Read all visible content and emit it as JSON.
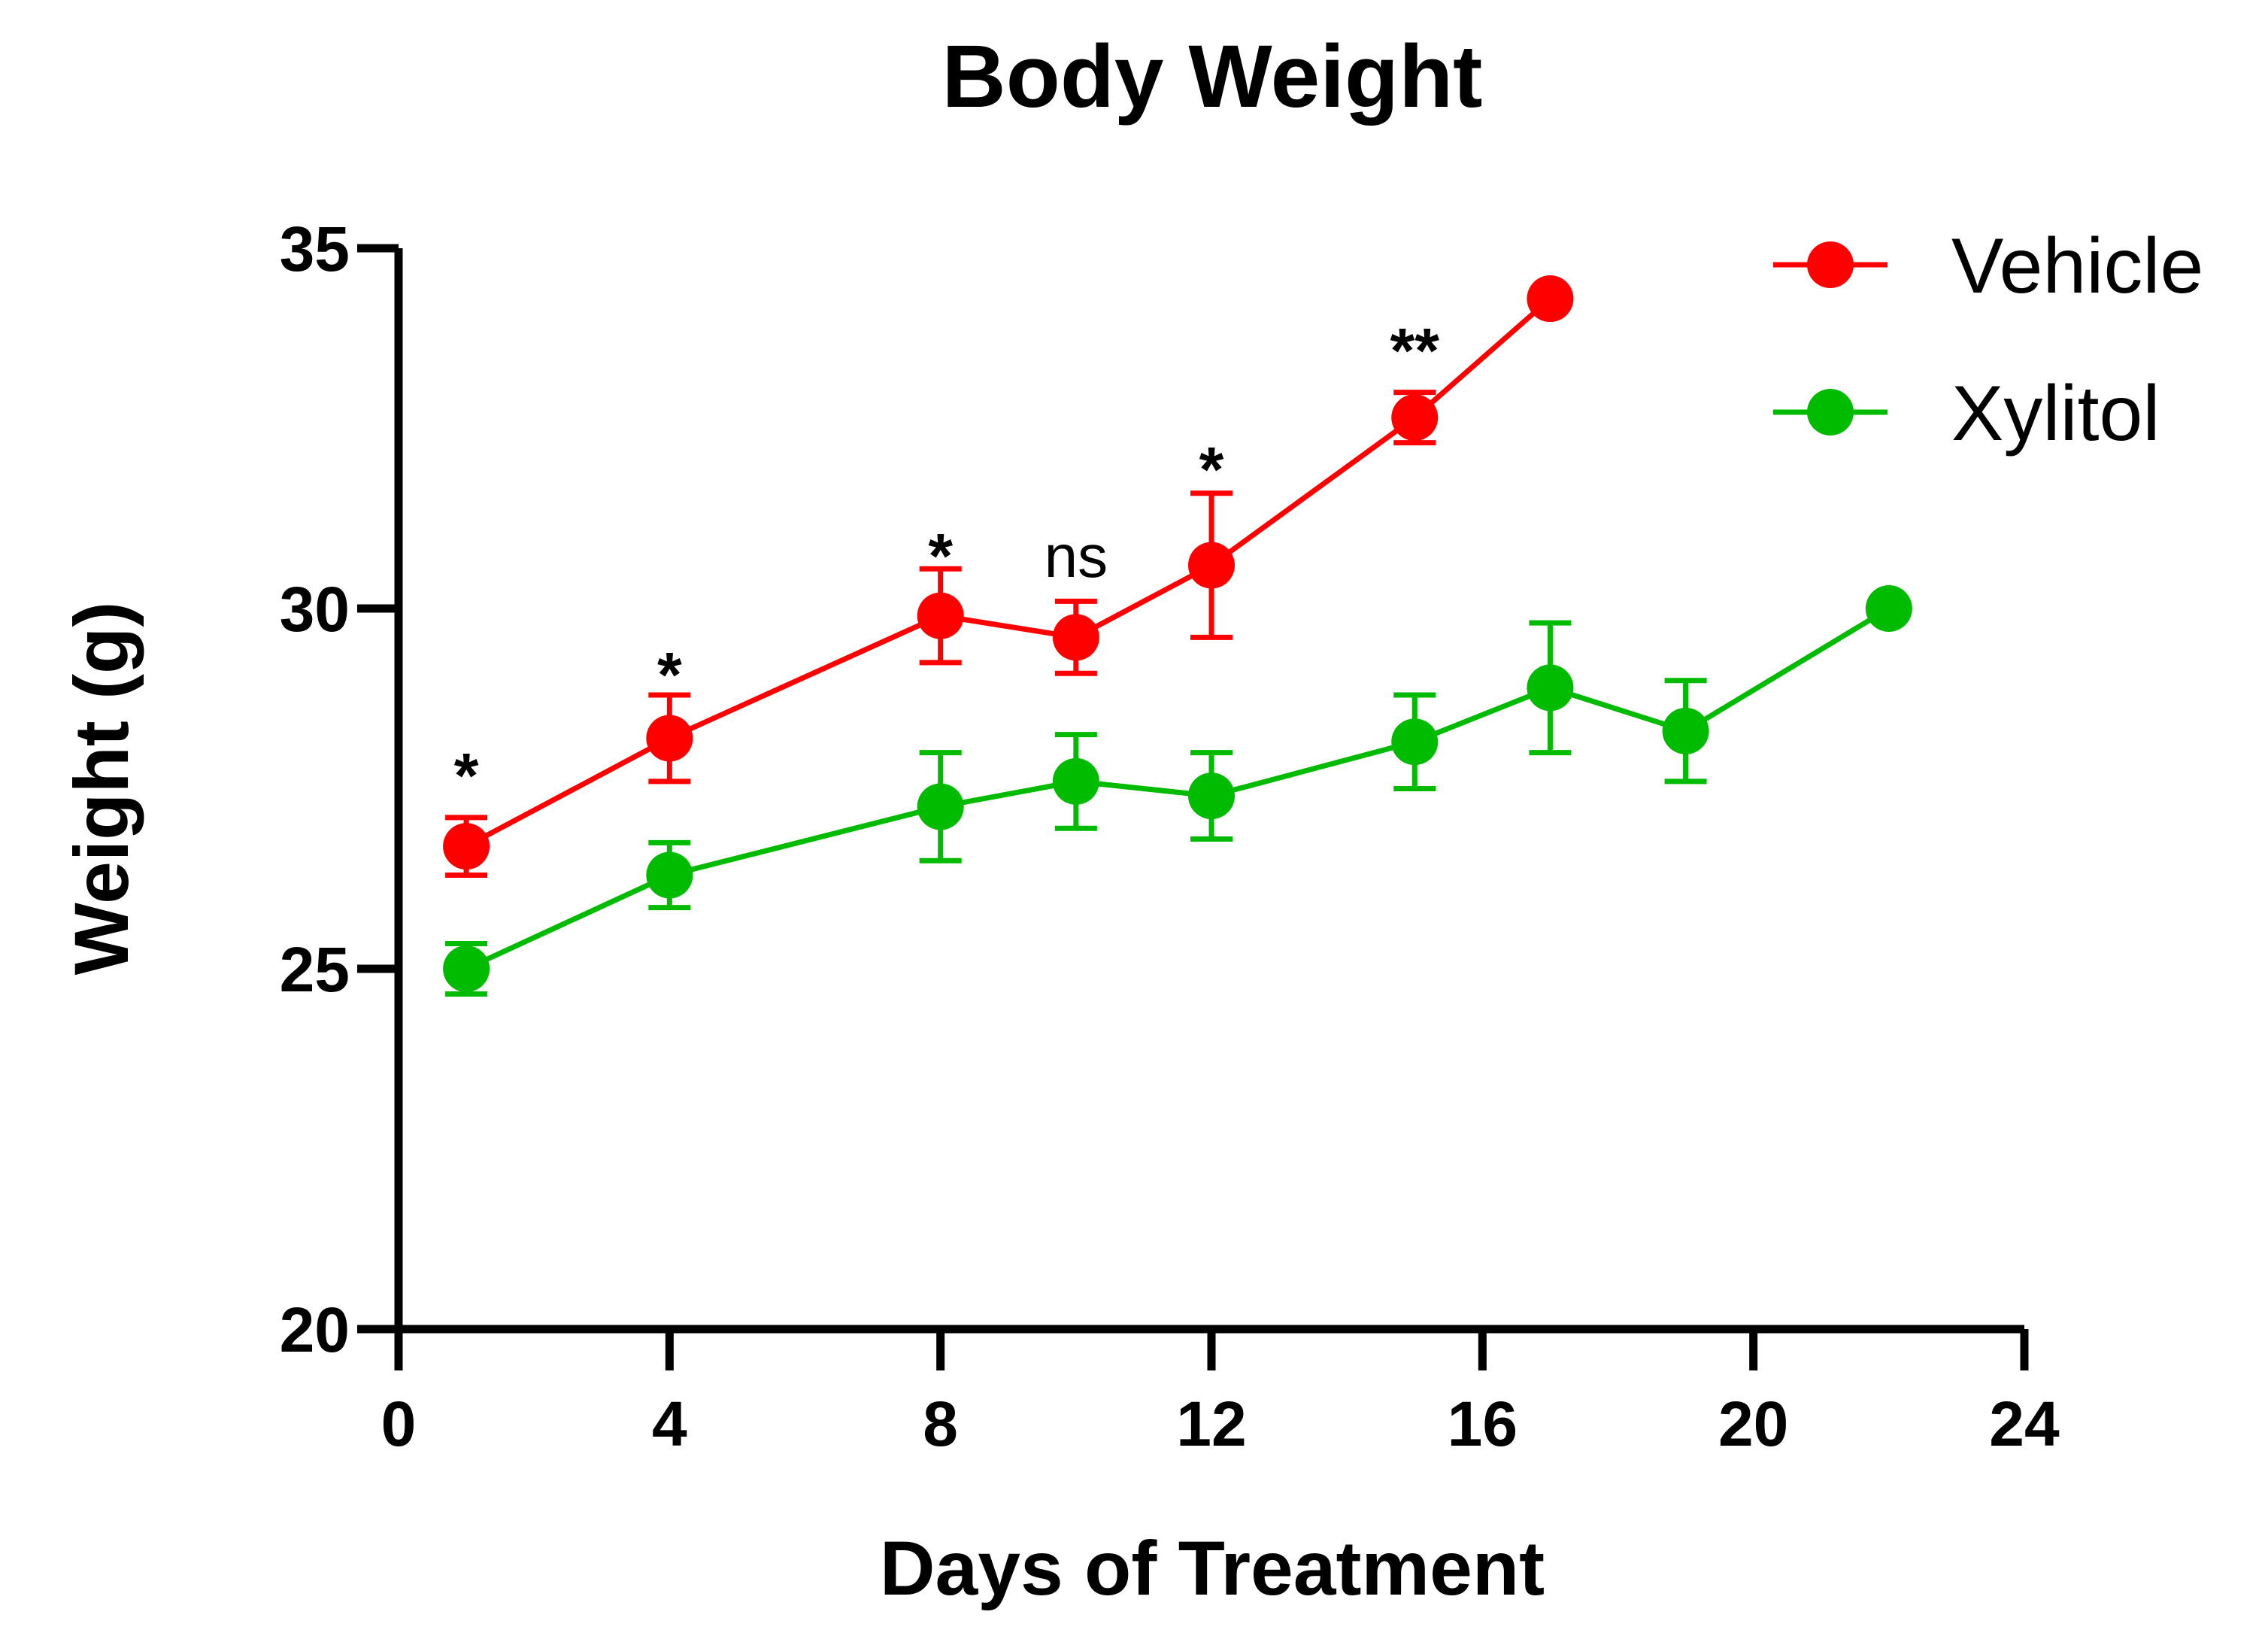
{
  "chart_data": {
    "type": "line",
    "title": "Body Weight",
    "xlabel": "Days of Treatment",
    "ylabel": "Weight (g)",
    "xlim": [
      0,
      24
    ],
    "ylim": [
      20,
      35
    ],
    "xticks": [
      0,
      4,
      8,
      12,
      16,
      20,
      24
    ],
    "yticks": [
      20,
      25,
      30,
      35
    ],
    "grid": false,
    "legend_position": "top-right",
    "series": [
      {
        "name": "Vehicle",
        "color": "#ff0000",
        "x": [
          1,
          4,
          8,
          10,
          12,
          15,
          17
        ],
        "y": [
          26.7,
          28.2,
          29.9,
          29.6,
          30.6,
          32.65,
          34.3
        ],
        "err": [
          0.4,
          0.6,
          0.65,
          0.5,
          1.0,
          0.35,
          0
        ]
      },
      {
        "name": "Xylitol",
        "color": "#00bb00",
        "x": [
          1,
          4,
          8,
          10,
          12,
          15,
          17,
          19,
          22
        ],
        "y": [
          25.0,
          26.3,
          27.25,
          27.6,
          27.4,
          28.15,
          28.9,
          28.3,
          30.0
        ],
        "err": [
          0.35,
          0.45,
          0.75,
          0.65,
          0.6,
          0.65,
          0.9,
          0.7,
          0
        ]
      }
    ],
    "annotations": [
      {
        "x": 1,
        "y": 27.9,
        "text": "*"
      },
      {
        "x": 4,
        "y": 29.3,
        "text": "*"
      },
      {
        "x": 8,
        "y": 30.95,
        "text": "*"
      },
      {
        "x": 10,
        "y": 30.7,
        "text": "ns"
      },
      {
        "x": 12,
        "y": 32.15,
        "text": "*"
      },
      {
        "x": 15,
        "y": 33.8,
        "text": "**"
      }
    ]
  }
}
